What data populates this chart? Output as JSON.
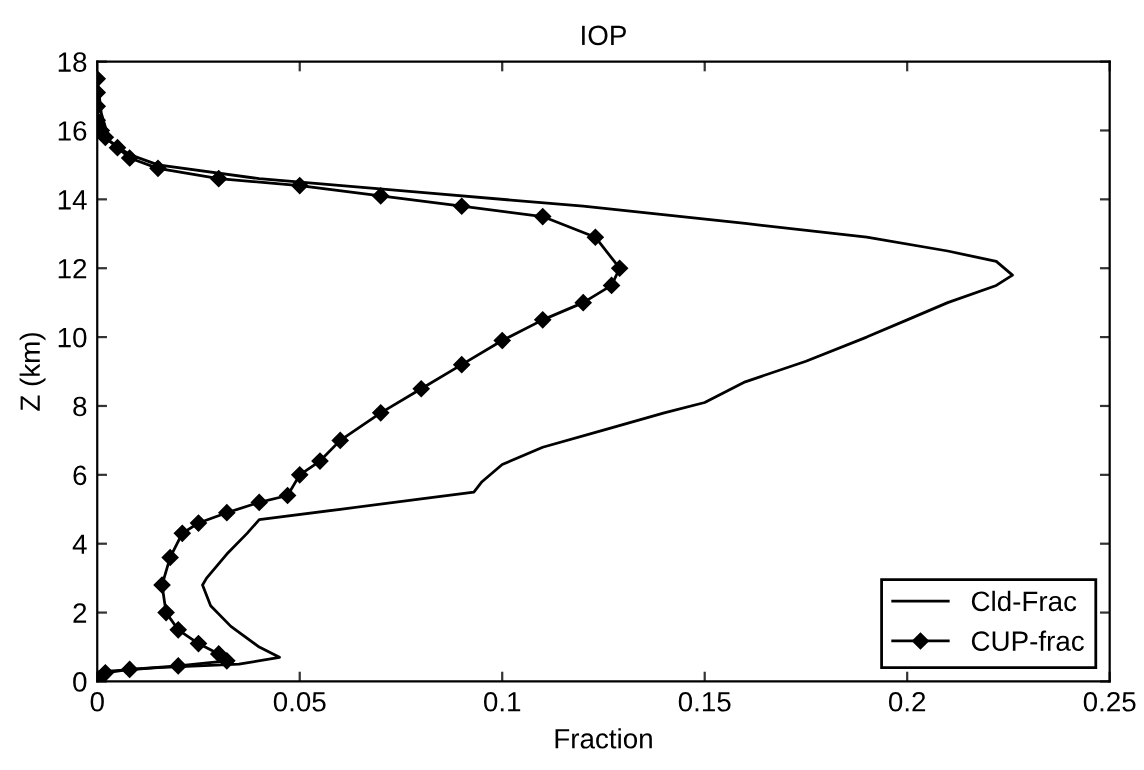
{
  "chart_data": {
    "type": "line",
    "title": "IOP",
    "xlabel": "Fraction",
    "ylabel": "Z (km)",
    "xlim": [
      0,
      0.25
    ],
    "xticks": [
      0,
      0.05,
      0.1,
      0.15,
      0.2,
      0.25
    ],
    "ylim": [
      0,
      18
    ],
    "yticks": [
      0,
      2,
      4,
      6,
      8,
      10,
      12,
      14,
      16,
      18
    ],
    "grid": false,
    "legend": "bottom right",
    "series": [
      {
        "name": "Cld-Frac",
        "color": "#000000",
        "marker": "none",
        "x": [
          0.0,
          0.001,
          0.003,
          0.008,
          0.015,
          0.04,
          0.08,
          0.12,
          0.16,
          0.19,
          0.21,
          0.222,
          0.226,
          0.222,
          0.21,
          0.2,
          0.19,
          0.175,
          0.16,
          0.15,
          0.14,
          0.125,
          0.11,
          0.1,
          0.095,
          0.093,
          0.08,
          0.06,
          0.04,
          0.037,
          0.032,
          0.027,
          0.026,
          0.028,
          0.033,
          0.04,
          0.045,
          0.035,
          0.015,
          0.003,
          0.0
        ],
        "values": [
          17.5,
          16.5,
          15.7,
          15.3,
          15.0,
          14.6,
          14.2,
          13.8,
          13.3,
          12.9,
          12.5,
          12.2,
          11.8,
          11.5,
          11.0,
          10.5,
          10.0,
          9.3,
          8.7,
          8.1,
          7.8,
          7.3,
          6.8,
          6.3,
          5.8,
          5.5,
          5.3,
          5.0,
          4.7,
          4.3,
          3.7,
          3.0,
          2.8,
          2.2,
          1.6,
          1.0,
          0.7,
          0.5,
          0.4,
          0.3,
          0.1
        ]
      },
      {
        "name": "CUP-frac",
        "color": "#000000",
        "marker": "diamond",
        "x": [
          0.0,
          0.0,
          0.0,
          0.0,
          0.001,
          0.002,
          0.005,
          0.008,
          0.015,
          0.03,
          0.05,
          0.07,
          0.09,
          0.11,
          0.123,
          0.129,
          0.127,
          0.12,
          0.11,
          0.1,
          0.09,
          0.08,
          0.07,
          0.06,
          0.055,
          0.05,
          0.047,
          0.04,
          0.032,
          0.025,
          0.021,
          0.018,
          0.016,
          0.017,
          0.02,
          0.025,
          0.03,
          0.032,
          0.02,
          0.008,
          0.002,
          0.0,
          0.0
        ],
        "values": [
          17.5,
          17.1,
          16.7,
          16.3,
          16.0,
          15.8,
          15.5,
          15.2,
          14.9,
          14.6,
          14.4,
          14.1,
          13.8,
          13.5,
          12.9,
          12.0,
          11.5,
          11.0,
          10.5,
          9.9,
          9.2,
          8.5,
          7.8,
          7.0,
          6.4,
          6.0,
          5.4,
          5.2,
          4.9,
          4.6,
          4.3,
          3.6,
          2.8,
          2.0,
          1.5,
          1.1,
          0.8,
          0.6,
          0.45,
          0.35,
          0.25,
          0.1,
          0.0
        ]
      }
    ]
  }
}
